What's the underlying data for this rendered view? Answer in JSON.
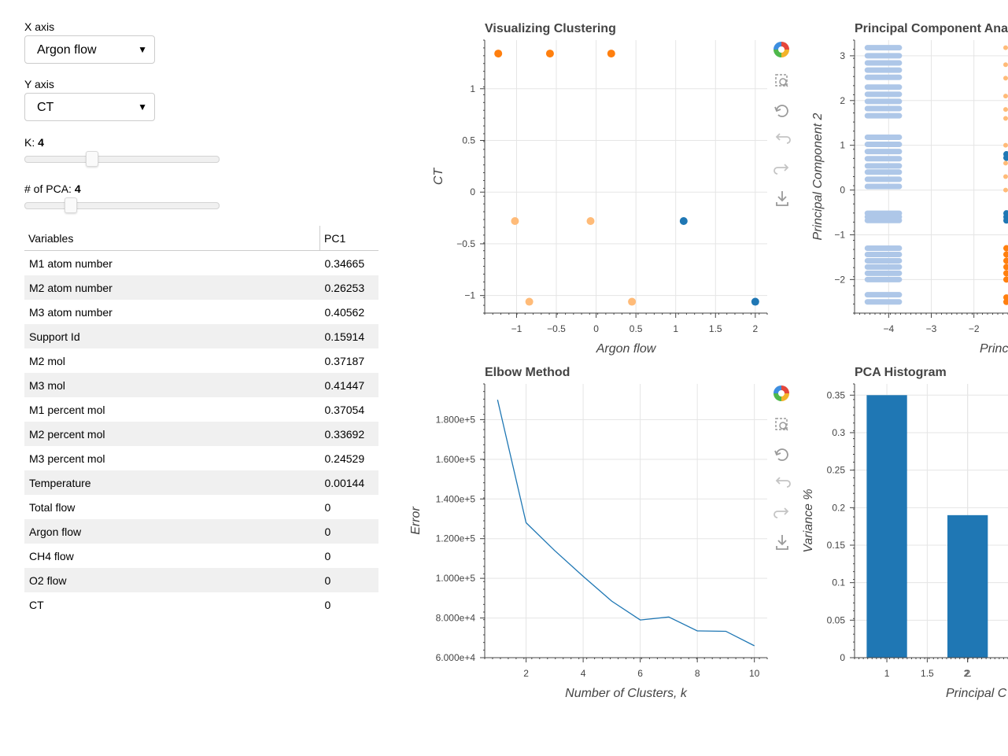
{
  "controls": {
    "x_axis_label": "X axis",
    "x_axis_value": "Argon flow",
    "y_axis_label": "Y axis",
    "y_axis_value": "CT",
    "k_label": "K:",
    "k_value": "4",
    "k_slider": {
      "value": 4,
      "min": 1,
      "max": 10
    },
    "pca_label": "# of PCA:",
    "pca_value": "4",
    "pca_slider": {
      "value": 4,
      "min": 1,
      "max": 15
    },
    "dropdown_arrow": "▼"
  },
  "table": {
    "headers": [
      "Variables",
      "PC1"
    ],
    "rows": [
      [
        "M1 atom number",
        "0.34665"
      ],
      [
        "M2 atom number",
        "0.26253"
      ],
      [
        "M3 atom number",
        "0.40562"
      ],
      [
        "Support Id",
        "0.15914"
      ],
      [
        "M2 mol",
        "0.37187"
      ],
      [
        "M3 mol",
        "0.41447"
      ],
      [
        "M1 percent mol",
        "0.37054"
      ],
      [
        "M2 percent mol",
        "0.33692"
      ],
      [
        "M3 percent mol",
        "0.24529"
      ],
      [
        "Temperature",
        "0.00144"
      ],
      [
        "Total flow",
        "0"
      ],
      [
        "Argon flow",
        "0"
      ],
      [
        "CH4 flow",
        "0"
      ],
      [
        "O2 flow",
        "0"
      ],
      [
        "CT",
        "0"
      ]
    ]
  },
  "toolbar_icons": [
    "bokeh-logo-icon",
    "box-zoom-icon",
    "wheel-zoom-icon",
    "reset-icon",
    "undo-icon",
    "redo-icon",
    "save-icon"
  ],
  "colors": {
    "dark_blue": "#1f77b4",
    "light_blue": "#aec7e8",
    "orange": "#ff7f0e",
    "light_orange": "#ffbb78",
    "grid": "#e5e5e5"
  },
  "chart_data": [
    {
      "type": "scatter",
      "title": "Visualizing Clustering",
      "xlabel": "Argon flow",
      "ylabel": "CT",
      "xticks": [
        "−1",
        "−0.5",
        "0",
        "0.5",
        "1",
        "1.5",
        "2"
      ],
      "yticks": [
        "−1",
        "−0.5",
        "0",
        "0.5",
        "1"
      ],
      "xlim": [
        -1.4,
        2.15
      ],
      "ylim": [
        -1.17,
        1.47
      ],
      "points": [
        {
          "x": -1.23,
          "y": 1.34,
          "cluster": "orange"
        },
        {
          "x": -0.58,
          "y": 1.34,
          "cluster": "orange"
        },
        {
          "x": 0.19,
          "y": 1.34,
          "cluster": "orange"
        },
        {
          "x": -1.02,
          "y": -0.28,
          "cluster": "light_orange"
        },
        {
          "x": -0.07,
          "y": -0.28,
          "cluster": "light_orange"
        },
        {
          "x": -0.84,
          "y": -1.06,
          "cluster": "light_orange"
        },
        {
          "x": 0.45,
          "y": -1.06,
          "cluster": "light_orange"
        },
        {
          "x": 1.1,
          "y": -0.28,
          "cluster": "dark_blue"
        },
        {
          "x": 2.0,
          "y": -1.06,
          "cluster": "dark_blue"
        }
      ]
    },
    {
      "type": "scatter",
      "title": "Principal Component Ana",
      "xlabel": "Principal Co",
      "ylabel": "Principal Component 2",
      "xticks": [
        "−4",
        "−3",
        "−2"
      ],
      "yticks": [
        "−2",
        "−1",
        "0",
        "1",
        "2",
        "3"
      ],
      "xlim": [
        -4.8,
        -1.2
      ],
      "ylim": [
        -2.75,
        3.35
      ],
      "rows_light_blue": [
        3.18,
        3.0,
        2.84,
        2.68,
        2.52,
        2.3,
        2.14,
        1.98,
        1.82,
        1.66,
        1.18,
        1.02,
        0.86,
        0.7,
        0.54,
        0.4,
        0.24,
        0.08,
        -0.52,
        -0.6,
        -0.68,
        -1.3,
        -1.44,
        -1.58,
        -1.72,
        -1.86,
        -2.0,
        -2.34,
        -2.5
      ],
      "rows_dark_blue": [
        0.8,
        0.72,
        -0.52,
        -0.6,
        -0.68
      ],
      "rows_orange": [
        -1.3,
        -1.44,
        -1.58,
        -1.72,
        -1.86,
        -2.0,
        -2.4,
        -2.5
      ],
      "rows_light_orange": [
        3.18,
        2.8,
        2.5,
        2.1,
        1.8,
        1.6,
        1.0,
        0.6,
        0.3,
        0.0
      ]
    },
    {
      "type": "line",
      "title": "Elbow Method",
      "xlabel": "Number of Clusters, k",
      "ylabel": "Error",
      "xticks": [
        "2",
        "4",
        "6",
        "8",
        "10"
      ],
      "yticks": [
        "6.000e+4",
        "8.000e+4",
        "1.000e+5",
        "1.200e+5",
        "1.400e+5",
        "1.600e+5",
        "1.800e+5"
      ],
      "xlim": [
        0.55,
        10.45
      ],
      "ylim": [
        60000,
        198000
      ],
      "x": [
        1,
        2,
        3,
        4,
        5,
        6,
        7,
        8,
        9,
        10
      ],
      "y": [
        190000,
        128000,
        114000,
        101000,
        88500,
        79000,
        80500,
        73500,
        73300,
        66000
      ]
    },
    {
      "type": "bar",
      "title": "PCA Histogram",
      "xlabel": "Principal C",
      "ylabel": "Variance %",
      "xticks": [
        "1",
        "1.5",
        "2",
        "2."
      ],
      "yticks": [
        "0",
        "0.05",
        "0.1",
        "0.15",
        "0.2",
        "0.25",
        "0.3",
        "0.35"
      ],
      "xlim": [
        0.6,
        2.5
      ],
      "ylim": [
        0,
        0.365
      ],
      "categories": [
        1,
        2
      ],
      "values": [
        0.35,
        0.19
      ]
    }
  ]
}
